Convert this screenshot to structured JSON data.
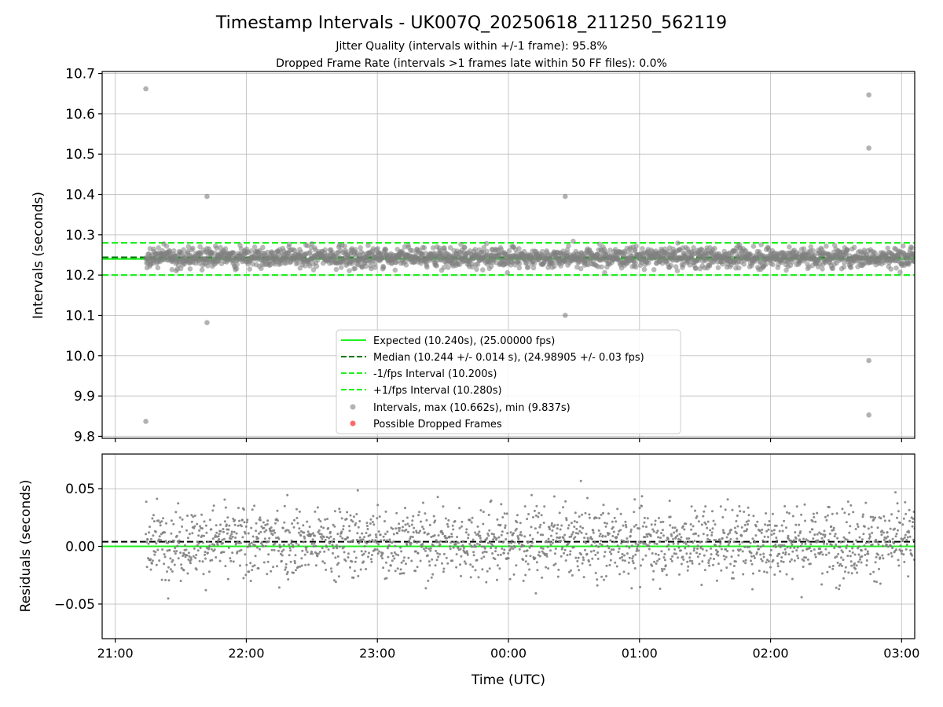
{
  "title": "Timestamp Intervals - UK007Q_20250618_211250_562119",
  "subtitle_lines": [
    "Jitter Quality (intervals within +/-1 frame): 95.8%",
    "Dropped Frame Rate (intervals >1 frames late within 50 FF files): 0.0%"
  ],
  "colors": {
    "expected": "#22ee22",
    "median": "#007700",
    "bounds": "#22ee22",
    "points": "#7f7f7f",
    "dropped": "#ff4d4d",
    "grid": "#b0b0b0"
  },
  "chart_data": [
    {
      "type": "scatter",
      "title": "Timestamp Intervals - UK007Q_20250618_211250_562119",
      "ylabel": "Intervals (seconds)",
      "xlabel": "",
      "xlim": [
        "20:54",
        "03:06"
      ],
      "ylim": [
        9.795,
        10.705
      ],
      "y_ticks": [
        "9.8",
        "9.9",
        "10.0",
        "10.1",
        "10.2",
        "10.3",
        "10.4",
        "10.5",
        "10.6",
        "10.7"
      ],
      "grid": true,
      "legend_position": "lower-center",
      "reference_lines": [
        {
          "name": "Expected (10.240s), (25.00000 fps)",
          "y": 10.24,
          "style": "solid"
        },
        {
          "name": "Median (10.244 +/- 0.014 s), (24.98905 +/- 0.03 fps)",
          "y": 10.244,
          "style": "dashed"
        },
        {
          "name": "-1/fps Interval (10.200s)",
          "y": 10.2,
          "style": "dashed"
        },
        {
          "name": "+1/fps Interval (10.280s)",
          "y": 10.28,
          "style": "dashed"
        }
      ],
      "series": [
        {
          "name": "Intervals, max (10.662s), min (9.837s)",
          "start_time": "21:14",
          "end_time": "03:06",
          "count": 2000,
          "median": 10.244,
          "spread": 0.014,
          "outliers": [
            {
              "x": "21:14",
              "y": 10.662
            },
            {
              "x": "21:14",
              "y": 9.837
            },
            {
              "x": "21:42",
              "y": 10.395
            },
            {
              "x": "21:42",
              "y": 10.082
            },
            {
              "x": "00:26",
              "y": 10.395
            },
            {
              "x": "00:26",
              "y": 10.1
            },
            {
              "x": "02:45",
              "y": 10.647
            },
            {
              "x": "02:45",
              "y": 10.515
            },
            {
              "x": "02:45",
              "y": 9.988
            },
            {
              "x": "02:45",
              "y": 9.853
            }
          ]
        },
        {
          "name": "Possible Dropped Frames",
          "points": []
        }
      ]
    },
    {
      "type": "scatter",
      "ylabel": "Residuals (seconds)",
      "xlabel": "Time (UTC)",
      "xlim": [
        "20:54",
        "03:06"
      ],
      "ylim": [
        -0.08,
        0.08
      ],
      "y_ticks": [
        "−0.05",
        "0.00",
        "0.05"
      ],
      "x_ticks": [
        "21:00",
        "22:00",
        "23:00",
        "00:00",
        "01:00",
        "02:00",
        "03:00"
      ],
      "grid": true,
      "reference_lines": [
        {
          "y": 0.0,
          "style": "solid"
        },
        {
          "y": 0.004,
          "style": "dashed"
        }
      ],
      "series": [
        {
          "name": "Residuals",
          "count": 2000,
          "spread": 0.014
        }
      ]
    }
  ]
}
